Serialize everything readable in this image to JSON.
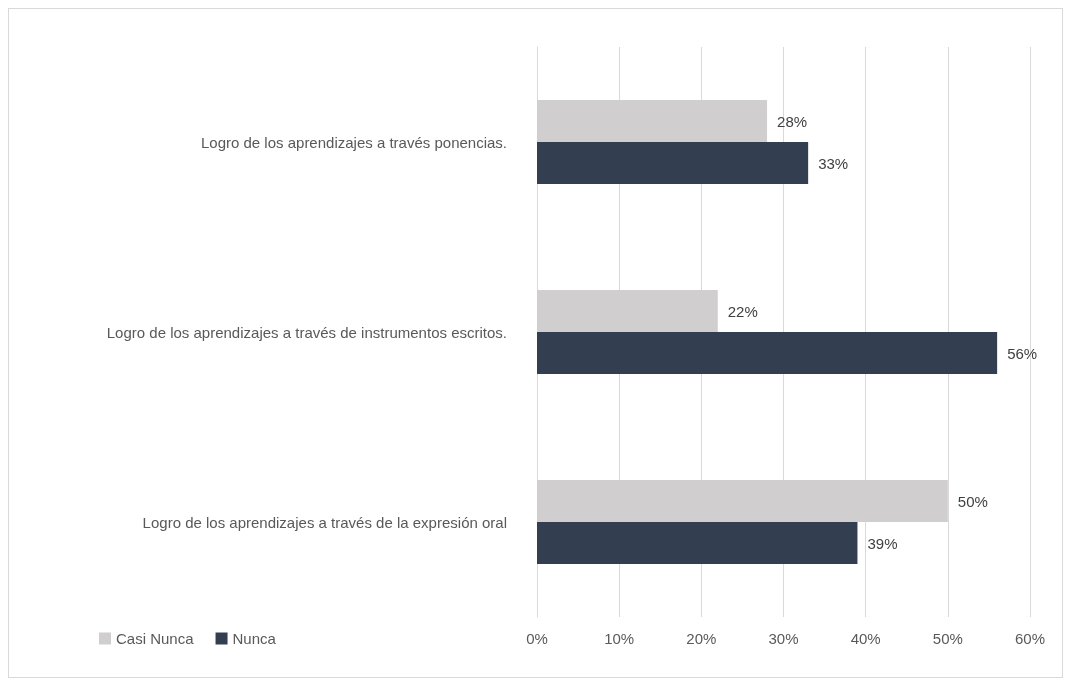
{
  "chart_data": {
    "type": "bar",
    "orientation": "horizontal",
    "categories": [
      "Logro de los aprendizajes a través ponencias.",
      "Logro de los aprendizajes a través de instrumentos escritos.",
      "Logro de los aprendizajes a través de la expresión oral"
    ],
    "series": [
      {
        "name": "Casi Nunca",
        "color": "#d0cece",
        "values": [
          28,
          22,
          50
        ],
        "value_labels": [
          "28%",
          "22%",
          "50%"
        ]
      },
      {
        "name": "Nunca",
        "color": "#333f50",
        "values": [
          33,
          56,
          39
        ],
        "value_labels": [
          "33%",
          "56%",
          "39%"
        ]
      }
    ],
    "xlim": [
      0,
      60
    ],
    "xticks": [
      {
        "value": 0,
        "label": "0%"
      },
      {
        "value": 10,
        "label": "10%"
      },
      {
        "value": 20,
        "label": "20%"
      },
      {
        "value": 30,
        "label": "30%"
      },
      {
        "value": 40,
        "label": "40%"
      },
      {
        "value": 50,
        "label": "50%"
      },
      {
        "value": 60,
        "label": "60%"
      }
    ],
    "grid": "x",
    "legend": "bottom left"
  }
}
